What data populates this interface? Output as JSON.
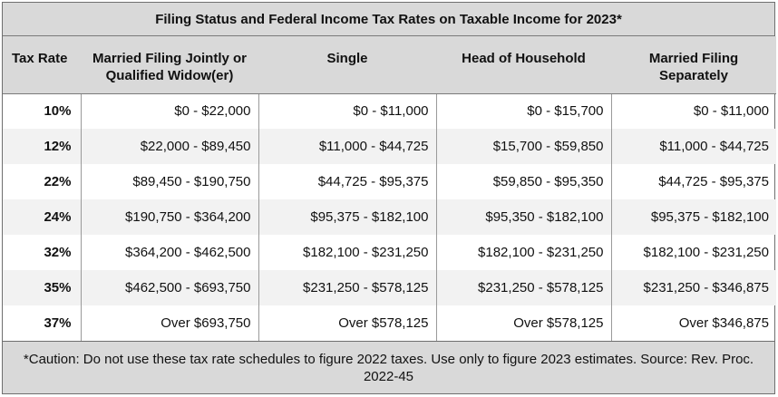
{
  "title": "Filing Status and Federal Income Tax Rates on Taxable Income for 2023*",
  "headers": [
    "Tax Rate",
    "Married Filing Jointly or Qualified Widow(er)",
    "Single",
    "Head of Household",
    "Married Filing Separately"
  ],
  "rows": [
    [
      "10%",
      "$0 - $22,000",
      "$0 - $11,000",
      "$0 - $15,700",
      "$0 - $11,000"
    ],
    [
      "12%",
      "$22,000 - $89,450",
      "$11,000 - $44,725",
      "$15,700 - $59,850",
      "$11,000 - $44,725"
    ],
    [
      "22%",
      "$89,450 - $190,750",
      "$44,725 - $95,375",
      "$59,850 - $95,350",
      "$44,725 - $95,375"
    ],
    [
      "24%",
      "$190,750 - $364,200",
      "$95,375 - $182,100",
      "$95,350 - $182,100",
      "$95,375 - $182,100"
    ],
    [
      "32%",
      "$364,200 - $462,500",
      "$182,100 - $231,250",
      "$182,100 - $231,250",
      "$182,100 - $231,250"
    ],
    [
      "35%",
      "$462,500 - $693,750",
      "$231,250 - $578,125",
      "$231,250 - $578,125",
      "$231,250 - $346,875"
    ],
    [
      "37%",
      "Over  $693,750",
      "Over  $578,125",
      "Over  $578,125",
      "Over  $346,875"
    ]
  ],
  "footnote": "*Caution: Do not use these tax rate schedules to figure 2022 taxes. Use only to figure 2023 estimates. Source: Rev. Proc. 2022-45",
  "colors": {
    "header_bg": "#d9d9d9",
    "alt_row_bg": "#f2f2f2",
    "border": "#7a7a7a"
  }
}
